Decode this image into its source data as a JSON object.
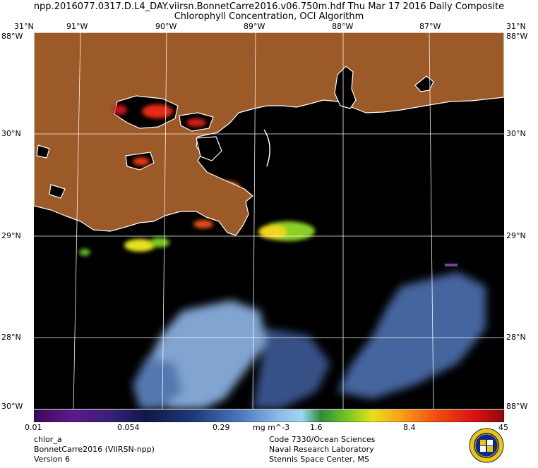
{
  "header": {
    "title_line1": "npp.2016077.0317.D.L4_DAY.viirsn.BonnetCarre2016.v06.750m.hdf    Thu Mar 17 2016 Daily Composite",
    "title_line2": "Chlorophyll Concentration, OCI Algorithm"
  },
  "map": {
    "longitude_labels": [
      "91°W",
      "90°W",
      "89°W",
      "88°W",
      "87°W"
    ],
    "corner_lon_left": "31°N",
    "corner_lon_right": "31°N",
    "latitude_labels": [
      "30°N",
      "29°N",
      "28°N"
    ],
    "corner_top": "88°W",
    "corner_bottom_left": "30°W",
    "corner_bottom_right": "88°W",
    "colors": {
      "land": "#9c5a28",
      "water": "#000000",
      "coastline": "#ffffff",
      "grid": "#ffffff"
    }
  },
  "colorbar": {
    "ticks": [
      "0.01",
      "0.054",
      "0.29",
      "mg m^-3",
      "1.6",
      "8.4",
      "45"
    ],
    "units": "mg m^-3",
    "scale": "log",
    "range": [
      0.01,
      45
    ]
  },
  "footer": {
    "left": [
      "chlor_a",
      "BonnetCarre2016 (VIIRSN-npp)",
      "Version 6"
    ],
    "right": [
      "Code 7330/Ocean Sciences",
      "Naval Research Laboratory",
      "Stennis Space Center, MS"
    ],
    "seal_icon": "nrl-seal-icon"
  }
}
